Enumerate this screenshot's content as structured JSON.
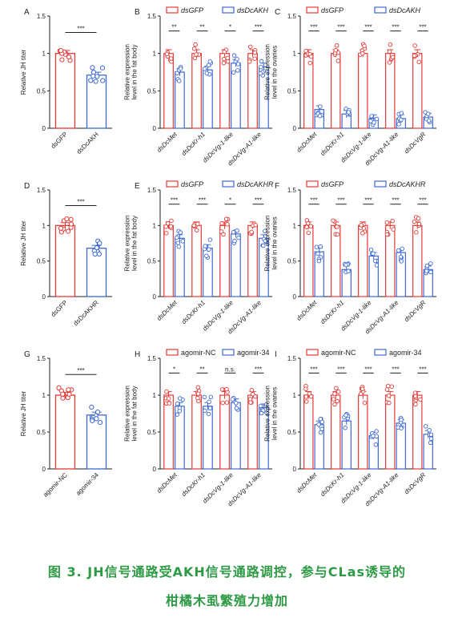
{
  "colors": {
    "red": "#e53935",
    "blue": "#3c68d6",
    "axis": "#222222",
    "caption": "#2e9a45"
  },
  "caption": {
    "line1": "图 3. JH信号通路受AKH信号通路调控，参与CLas诱导的",
    "line2": "柑橘木虱繁殖力增加"
  },
  "chart_data": [
    {
      "type": "bar",
      "panel": "A",
      "ylabel": "Relative JH titer",
      "ylim": [
        0,
        1.5
      ],
      "ticks": [
        0,
        0.5,
        1,
        1.5
      ],
      "categories": [
        "dsGFP",
        "dsDcAKH"
      ],
      "values": [
        1.0,
        0.71
      ],
      "significance": [
        "***"
      ]
    },
    {
      "type": "bar",
      "panel": "B",
      "ylabel": [
        "Relative expression",
        "level in the fat body"
      ],
      "ylim": [
        0,
        1.5
      ],
      "ticks": [
        0,
        0.5,
        1,
        1.5
      ],
      "legend": [
        "dsGFP",
        "dsDcAKH"
      ],
      "categories": [
        "dsDcMet",
        "dsDcKr-h1",
        "dsDcVg-1-like",
        "dsDcVg-A1-like"
      ],
      "series": [
        {
          "name": "dsGFP",
          "values": [
            1.0,
            1.0,
            1.0,
            1.0
          ]
        },
        {
          "name": "dsDcAKH",
          "values": [
            0.75,
            0.78,
            0.87,
            0.82
          ]
        }
      ],
      "significance": [
        "**",
        "**",
        "*",
        "***"
      ]
    },
    {
      "type": "bar",
      "panel": "C",
      "ylabel": [
        "Relative expression",
        "level in the ovaries"
      ],
      "ylim": [
        0,
        1.5
      ],
      "ticks": [
        0,
        0.5,
        1,
        1.5
      ],
      "legend": [
        "dsGFP",
        "dsDcAKH"
      ],
      "categories": [
        "dsDcMet",
        "dsDcKr-h1",
        "dsDcVg-1-like",
        "dsDcVg-A1-like",
        "dsDcVgR"
      ],
      "series": [
        {
          "name": "dsGFP",
          "values": [
            1.0,
            1.0,
            1.0,
            1.0,
            1.0
          ]
        },
        {
          "name": "dsDcAKH",
          "values": [
            0.25,
            0.19,
            0.13,
            0.13,
            0.15
          ]
        }
      ],
      "significance": [
        "***",
        "***",
        "***",
        "***",
        "***"
      ]
    },
    {
      "type": "bar",
      "panel": "D",
      "ylabel": "Relative JH titer",
      "ylim": [
        0,
        1.5
      ],
      "ticks": [
        0,
        0.5,
        1,
        1.5
      ],
      "categories": [
        "dsGFP",
        "dsDcAKHR"
      ],
      "values": [
        1.0,
        0.68
      ],
      "significance": [
        "***"
      ]
    },
    {
      "type": "bar",
      "panel": "E",
      "ylabel": [
        "Relative expression",
        "level in the fat body"
      ],
      "ylim": [
        0,
        1.5
      ],
      "ticks": [
        0,
        0.5,
        1,
        1.5
      ],
      "legend": [
        "dsGFP",
        "dsDcAKHR"
      ],
      "categories": [
        "dsDcMet",
        "dsDcKr-h1",
        "dsDcVg-1-like",
        "dsDcVg-A1-like"
      ],
      "series": [
        {
          "name": "dsGFP",
          "values": [
            1.0,
            1.0,
            1.0,
            1.0
          ]
        },
        {
          "name": "dsDcAKHR",
          "values": [
            0.82,
            0.68,
            0.88,
            0.82
          ]
        }
      ],
      "significance": [
        "***",
        "***",
        "*",
        "***"
      ]
    },
    {
      "type": "bar",
      "panel": "F",
      "ylabel": [
        "Relative expression",
        "level in the ovaries"
      ],
      "ylim": [
        0,
        1.5
      ],
      "ticks": [
        0,
        0.5,
        1,
        1.5
      ],
      "legend": [
        "dsGFP",
        "dsDcAKHR"
      ],
      "categories": [
        "dsDcMet",
        "dsDcKr-h1",
        "dsDcVg-1-like",
        "dsDcVg-A1-like",
        "dsDcVgR"
      ],
      "series": [
        {
          "name": "dsGFP",
          "values": [
            1.0,
            1.0,
            1.0,
            1.0,
            1.0
          ]
        },
        {
          "name": "dsDcAKHR",
          "values": [
            0.63,
            0.38,
            0.57,
            0.62,
            0.38
          ]
        }
      ],
      "significance": [
        "***",
        "***",
        "***",
        "***",
        "***"
      ]
    },
    {
      "type": "bar",
      "panel": "G",
      "ylabel": "Relative JH titer",
      "ylim": [
        0,
        1.5
      ],
      "ticks": [
        0,
        0.5,
        1,
        1.5
      ],
      "categories": [
        "agomir-NC",
        "agomir-34"
      ],
      "values": [
        1.0,
        0.73
      ],
      "significance": [
        "***"
      ]
    },
    {
      "type": "bar",
      "panel": "H",
      "ylabel": [
        "Relative expression",
        "level in the fat body"
      ],
      "ylim": [
        0,
        1.5
      ],
      "ticks": [
        0,
        0.5,
        1,
        1.5
      ],
      "legend": [
        "agomir-NC",
        "agomir-34"
      ],
      "categories": [
        "dsDcMet",
        "dsDcKr-h1",
        "dsDcVg-1-like",
        "dsDcVg-A1-like"
      ],
      "series": [
        {
          "name": "agomir-NC",
          "values": [
            1.0,
            1.0,
            1.0,
            1.0
          ]
        },
        {
          "name": "agomir-34",
          "values": [
            0.85,
            0.85,
            0.9,
            0.83
          ]
        }
      ],
      "significance": [
        "*",
        "**",
        "n.s.",
        "***"
      ]
    },
    {
      "type": "bar",
      "panel": "I",
      "ylabel": [
        "Relative expression",
        "level in the ovaries"
      ],
      "ylim": [
        0,
        1.5
      ],
      "ticks": [
        0,
        0.5,
        1,
        1.5
      ],
      "legend": [
        "agomir-NC",
        "agomir-34"
      ],
      "categories": [
        "dsDcMet",
        "dsDcKr-h1",
        "dsDcVg-1-like",
        "dsDcVg-A1-like",
        "dsDcVgR"
      ],
      "series": [
        {
          "name": "agomir-NC",
          "values": [
            1.0,
            1.0,
            1.0,
            1.0,
            1.0
          ]
        },
        {
          "name": "agomir-34",
          "values": [
            0.6,
            0.65,
            0.45,
            0.62,
            0.47
          ]
        }
      ],
      "significance": [
        "***",
        "***",
        "***",
        "***",
        "***"
      ]
    }
  ]
}
